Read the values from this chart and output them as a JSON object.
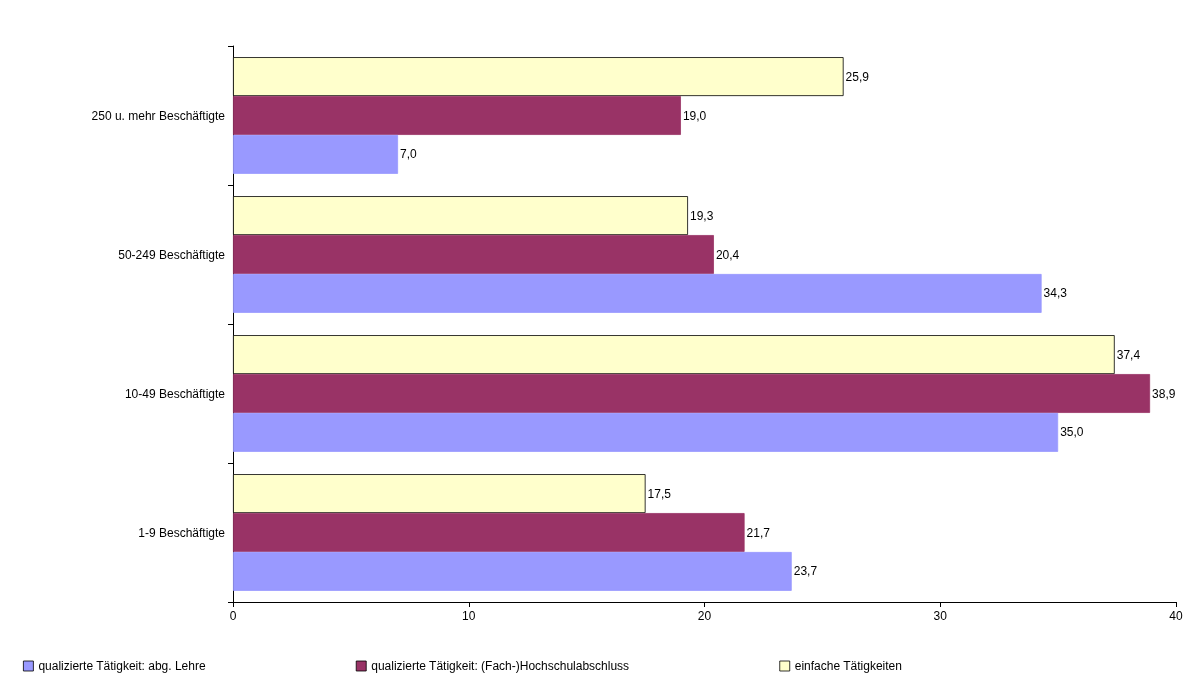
{
  "chart_data": {
    "type": "bar",
    "orientation": "horizontal",
    "categories": [
      "250 u. mehr Beschäftigte",
      "50-249 Beschäftigte",
      "10-49 Beschäftigte",
      "1-9 Beschäftigte"
    ],
    "series": [
      {
        "name": "qualizierte Tätigkeit: abg. Lehre",
        "color": "#9999ff",
        "values": [
          7.0,
          34.3,
          35.0,
          23.7
        ],
        "value_labels": [
          "7,0",
          "34,3",
          "35,0",
          "23,7"
        ]
      },
      {
        "name": "qualizierte Tätigkeit: (Fach-)Hochschulabschluss",
        "color": "#993366",
        "values": [
          19.0,
          20.4,
          38.9,
          21.7
        ],
        "value_labels": [
          "19,0",
          "20,4",
          "38,9",
          "21,7"
        ]
      },
      {
        "name": "einfache Tätigkeiten",
        "color": "#ffffcc",
        "values": [
          25.9,
          19.3,
          37.4,
          17.5
        ],
        "value_labels": [
          "25,9",
          "19,3",
          "37,4",
          "17,5"
        ]
      }
    ],
    "xlim": [
      0,
      40
    ],
    "xticks": [
      0,
      10,
      20,
      30,
      40
    ],
    "grid": false,
    "legend": "bottom"
  }
}
